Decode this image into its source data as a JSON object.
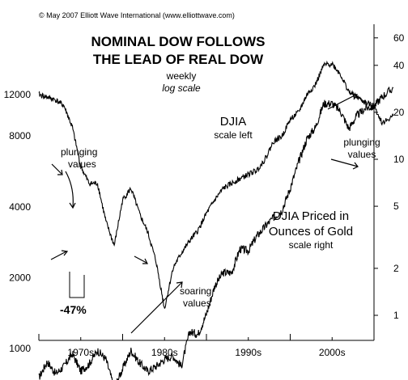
{
  "copyright": "© May 2007 Elliott Wave International (www.elliottwave.com)",
  "chart_data": {
    "type": "line",
    "title": "NOMINAL DOW FOLLOWS",
    "title_line2": "THE LEAD OF REAL DOW",
    "subtitle": "weekly",
    "subtitle_line2": "log scale",
    "x_ticks": [
      "1970s",
      "1980s",
      "1990s",
      "2000s"
    ],
    "left_axis": {
      "scale": "log",
      "ticks": [
        1000,
        2000,
        4000,
        8000,
        12000
      ],
      "tick_labels": [
        "1000",
        "2000",
        "4000",
        "8000",
        "12000"
      ]
    },
    "right_axis": {
      "scale": "log",
      "ticks": [
        1,
        2,
        5,
        10,
        20,
        40,
        60
      ],
      "tick_labels": [
        "1",
        "2",
        "5",
        "10",
        "20",
        "40",
        "60"
      ]
    },
    "series": [
      {
        "name": "DJIA",
        "axis": "left",
        "x": [
          1965,
          1966,
          1967,
          1968,
          1969,
          1970,
          1971,
          1972,
          1973,
          1974,
          1975,
          1976,
          1977,
          1978,
          1979,
          1980,
          1981,
          1982,
          1983,
          1984,
          1985,
          1986,
          1987,
          1988,
          1989,
          1990,
          1991,
          1992,
          1993,
          1994,
          1995,
          1996,
          1997,
          1998,
          1999,
          2000,
          2001,
          2002,
          2003,
          2004,
          2005,
          2006,
          2007.3
        ],
        "y": [
          750,
          880,
          780,
          840,
          950,
          800,
          860,
          980,
          900,
          680,
          820,
          980,
          870,
          800,
          840,
          900,
          930,
          840,
          1180,
          1150,
          1400,
          1850,
          2100,
          2100,
          2650,
          2600,
          3000,
          3300,
          3600,
          3850,
          4800,
          6200,
          7800,
          8700,
          11000,
          11000,
          10200,
          8600,
          9800,
          10500,
          10700,
          11800,
          12800
        ]
      },
      {
        "name": "DJIA Priced in Ounces of Gold",
        "axis": "right",
        "x": [
          1965,
          1966,
          1967,
          1968,
          1969,
          1970,
          1971,
          1972,
          1973,
          1974,
          1975,
          1976,
          1977,
          1978,
          1979,
          1980,
          1981,
          1982,
          1983,
          1984,
          1985,
          1986,
          1987,
          1988,
          1989,
          1990,
          1991,
          1992,
          1993,
          1994,
          1995,
          1996,
          1997,
          1998,
          1999,
          2000,
          2001,
          2002,
          2003,
          2004,
          2005,
          2006,
          2007.3
        ],
        "y": [
          26,
          25,
          24,
          22,
          16,
          9,
          7,
          7,
          4,
          2.8,
          5.5,
          6.5,
          4.5,
          3.4,
          2.2,
          1.1,
          2.0,
          2.5,
          3.0,
          3.5,
          4.5,
          5.5,
          6.5,
          7.0,
          7.5,
          8.0,
          8.5,
          10,
          13,
          14,
          18,
          20,
          26,
          30,
          40,
          41,
          35,
          27,
          25,
          23,
          22,
          17,
          19
        ]
      }
    ],
    "annotations": {
      "plunging_left": [
        "plunging",
        "values"
      ],
      "drop_label": "-47%",
      "soaring": [
        "soaring",
        "values"
      ],
      "djia_label": [
        "DJIA",
        "scale left"
      ],
      "gold_label": [
        "DJIA Priced in",
        "Ounces of Gold",
        "scale right"
      ],
      "plunging_right": [
        "plunging",
        "values"
      ]
    }
  }
}
